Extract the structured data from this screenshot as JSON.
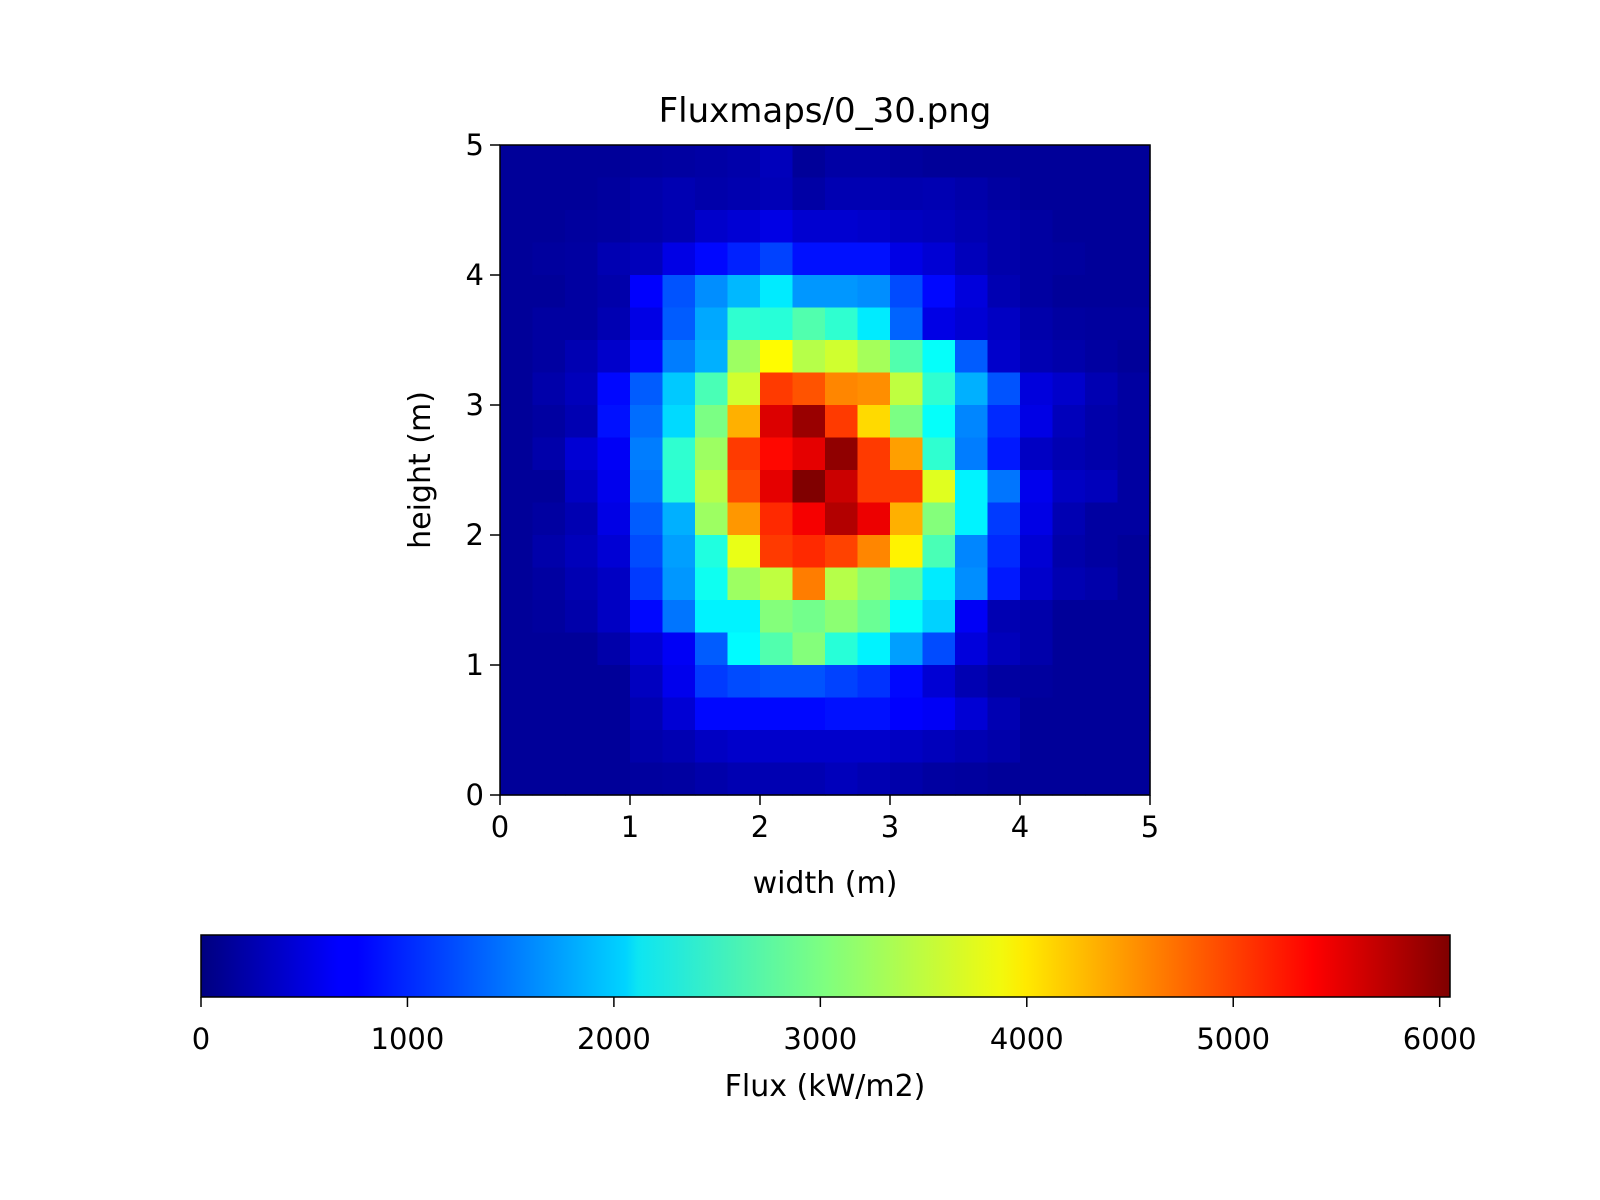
{
  "chart_data": {
    "type": "heatmap",
    "title": "Fluxmaps/0_30.png",
    "xlabel": "width (m)",
    "ylabel": "height (m)",
    "xlim": [
      0,
      5
    ],
    "ylim": [
      0,
      5
    ],
    "x_ticks": [
      "0",
      "1",
      "2",
      "3",
      "4",
      "5"
    ],
    "y_ticks": [
      "0",
      "1",
      "2",
      "3",
      "4",
      "5"
    ],
    "grid": false,
    "colormap": "jet",
    "rows_order": "top-to-bottom",
    "colorbar": {
      "label": "Flux (kW/m2)",
      "placement": "bottom",
      "range": [
        0,
        6050
      ],
      "ticks": [
        "0",
        "1000",
        "2000",
        "3000",
        "4000",
        "5000",
        "6000"
      ]
    },
    "values": [
      [
        150,
        150,
        150,
        150,
        180,
        200,
        220,
        250,
        350,
        150,
        220,
        220,
        180,
        150,
        150,
        150,
        150,
        150,
        150,
        150
      ],
      [
        150,
        150,
        150,
        180,
        250,
        300,
        250,
        280,
        330,
        220,
        300,
        300,
        280,
        300,
        250,
        200,
        150,
        150,
        150,
        150
      ],
      [
        150,
        150,
        180,
        200,
        250,
        300,
        450,
        500,
        600,
        480,
        480,
        450,
        380,
        350,
        300,
        250,
        200,
        150,
        150,
        150
      ],
      [
        150,
        180,
        200,
        300,
        350,
        600,
        800,
        950,
        1150,
        850,
        850,
        850,
        600,
        500,
        350,
        250,
        200,
        180,
        150,
        150
      ],
      [
        150,
        150,
        200,
        250,
        750,
        1250,
        1600,
        1850,
        2150,
        1650,
        1650,
        1600,
        1200,
        800,
        550,
        300,
        200,
        150,
        150,
        150
      ],
      [
        150,
        200,
        200,
        300,
        600,
        1300,
        1750,
        2550,
        2500,
        2750,
        2550,
        2150,
        1350,
        600,
        500,
        400,
        250,
        200,
        180,
        180
      ],
      [
        150,
        200,
        300,
        450,
        800,
        1500,
        1800,
        3200,
        3800,
        3350,
        3500,
        3250,
        2750,
        2300,
        1300,
        450,
        300,
        250,
        200,
        150
      ],
      [
        150,
        250,
        350,
        800,
        1300,
        1950,
        2700,
        3500,
        4950,
        4800,
        4500,
        4450,
        3400,
        2550,
        1800,
        1250,
        550,
        450,
        300,
        200
      ],
      [
        150,
        200,
        300,
        850,
        1400,
        2050,
        3000,
        4250,
        5500,
        5900,
        4950,
        4000,
        3000,
        2300,
        1550,
        1000,
        600,
        350,
        250,
        200
      ],
      [
        150,
        250,
        500,
        700,
        1500,
        2550,
        3200,
        4950,
        5250,
        5450,
        5950,
        4950,
        4350,
        2550,
        1500,
        900,
        400,
        300,
        250,
        200
      ],
      [
        150,
        150,
        400,
        650,
        1450,
        2500,
        3350,
        4850,
        5450,
        6050,
        5600,
        4950,
        4950,
        3600,
        2200,
        1450,
        650,
        400,
        350,
        200
      ],
      [
        150,
        200,
        300,
        600,
        1300,
        1800,
        3200,
        4400,
        5050,
        5350,
        5750,
        5400,
        4250,
        3050,
        2200,
        1100,
        600,
        300,
        200,
        200
      ],
      [
        150,
        250,
        350,
        500,
        1200,
        1700,
        2450,
        3650,
        4950,
        5050,
        4900,
        4500,
        3850,
        2700,
        1550,
        1000,
        500,
        250,
        200,
        150
      ],
      [
        150,
        200,
        300,
        400,
        1100,
        1650,
        2350,
        3200,
        3400,
        4550,
        3350,
        3100,
        2800,
        2150,
        1600,
        900,
        450,
        300,
        250,
        150
      ],
      [
        150,
        180,
        250,
        400,
        800,
        1450,
        2200,
        2200,
        3050,
        2950,
        3100,
        2900,
        2300,
        2000,
        700,
        300,
        250,
        150,
        150,
        150
      ],
      [
        150,
        150,
        150,
        250,
        500,
        700,
        1300,
        2250,
        2750,
        3050,
        2500,
        2200,
        1700,
        1200,
        550,
        350,
        250,
        150,
        150,
        150
      ],
      [
        150,
        150,
        150,
        150,
        380,
        650,
        1100,
        1200,
        1250,
        1250,
        1150,
        1050,
        800,
        500,
        300,
        200,
        180,
        150,
        150,
        150
      ],
      [
        150,
        150,
        150,
        150,
        300,
        500,
        800,
        800,
        800,
        800,
        850,
        850,
        750,
        700,
        500,
        300,
        150,
        150,
        150,
        150
      ],
      [
        150,
        150,
        150,
        150,
        250,
        300,
        400,
        450,
        450,
        450,
        450,
        450,
        400,
        350,
        300,
        250,
        150,
        150,
        150,
        150
      ],
      [
        150,
        150,
        150,
        150,
        180,
        200,
        250,
        300,
        300,
        300,
        350,
        300,
        250,
        200,
        180,
        150,
        150,
        150,
        150,
        150
      ]
    ]
  }
}
